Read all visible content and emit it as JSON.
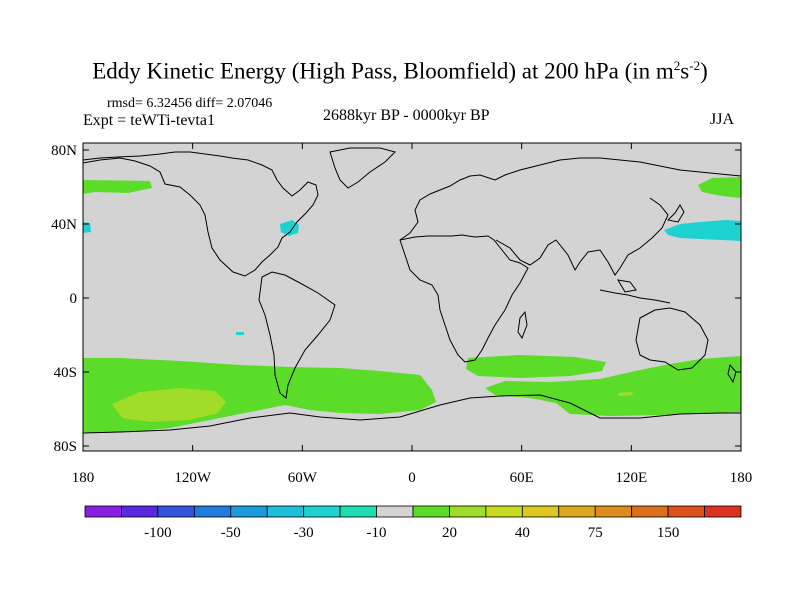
{
  "header": {
    "title_main": "Eddy Kinetic Energy (High Pass, Bloomfield) at 200 hPa (in m",
    "title_sup1": "2",
    "title_mid": "s",
    "title_sup2": "-2",
    "title_end": ")",
    "stats": "rmsd= 6.32456 diff= 2.07046",
    "experiment": "Expt = teWTi-tevta1",
    "period": "2688kyr BP - 0000kyr BP",
    "season": "JJA"
  },
  "map": {
    "background_color": "#d3d3d3",
    "coastline_color": "#000000",
    "lat_ticks": [
      "80N",
      "40N",
      "0",
      "40S",
      "80S"
    ],
    "lon_ticks": [
      "180",
      "120W",
      "60W",
      "0",
      "60E",
      "120E",
      "180"
    ]
  },
  "colorbar": {
    "colors": [
      "#8a1ee0",
      "#5a28e0",
      "#3255dc",
      "#1e7ddc",
      "#1e9bdc",
      "#1ebedc",
      "#1ed2d2",
      "#1edcb4",
      "#d3d3d3",
      "#5adc28",
      "#a0dc28",
      "#c8dc1e",
      "#dcc81e",
      "#dcaa1e",
      "#dc8c1e",
      "#dc6e1e",
      "#dc501e",
      "#dc321e"
    ],
    "labels": [
      "-100",
      "-50",
      "-30",
      "-10",
      "20",
      "40",
      "75",
      "150"
    ]
  },
  "field_regions": [
    {
      "name": "north-pacific-green",
      "color": "#5adc28"
    },
    {
      "name": "north-atlantic-cyan",
      "color": "#1ed2d2"
    },
    {
      "name": "east-asia-green",
      "color": "#5adc28"
    },
    {
      "name": "northwest-pacific-cyan",
      "color": "#1ed2d2"
    },
    {
      "name": "southern-ocean-green",
      "color": "#5adc28"
    },
    {
      "name": "south-pacific-yellowgreen",
      "color": "#a0dc28"
    }
  ]
}
